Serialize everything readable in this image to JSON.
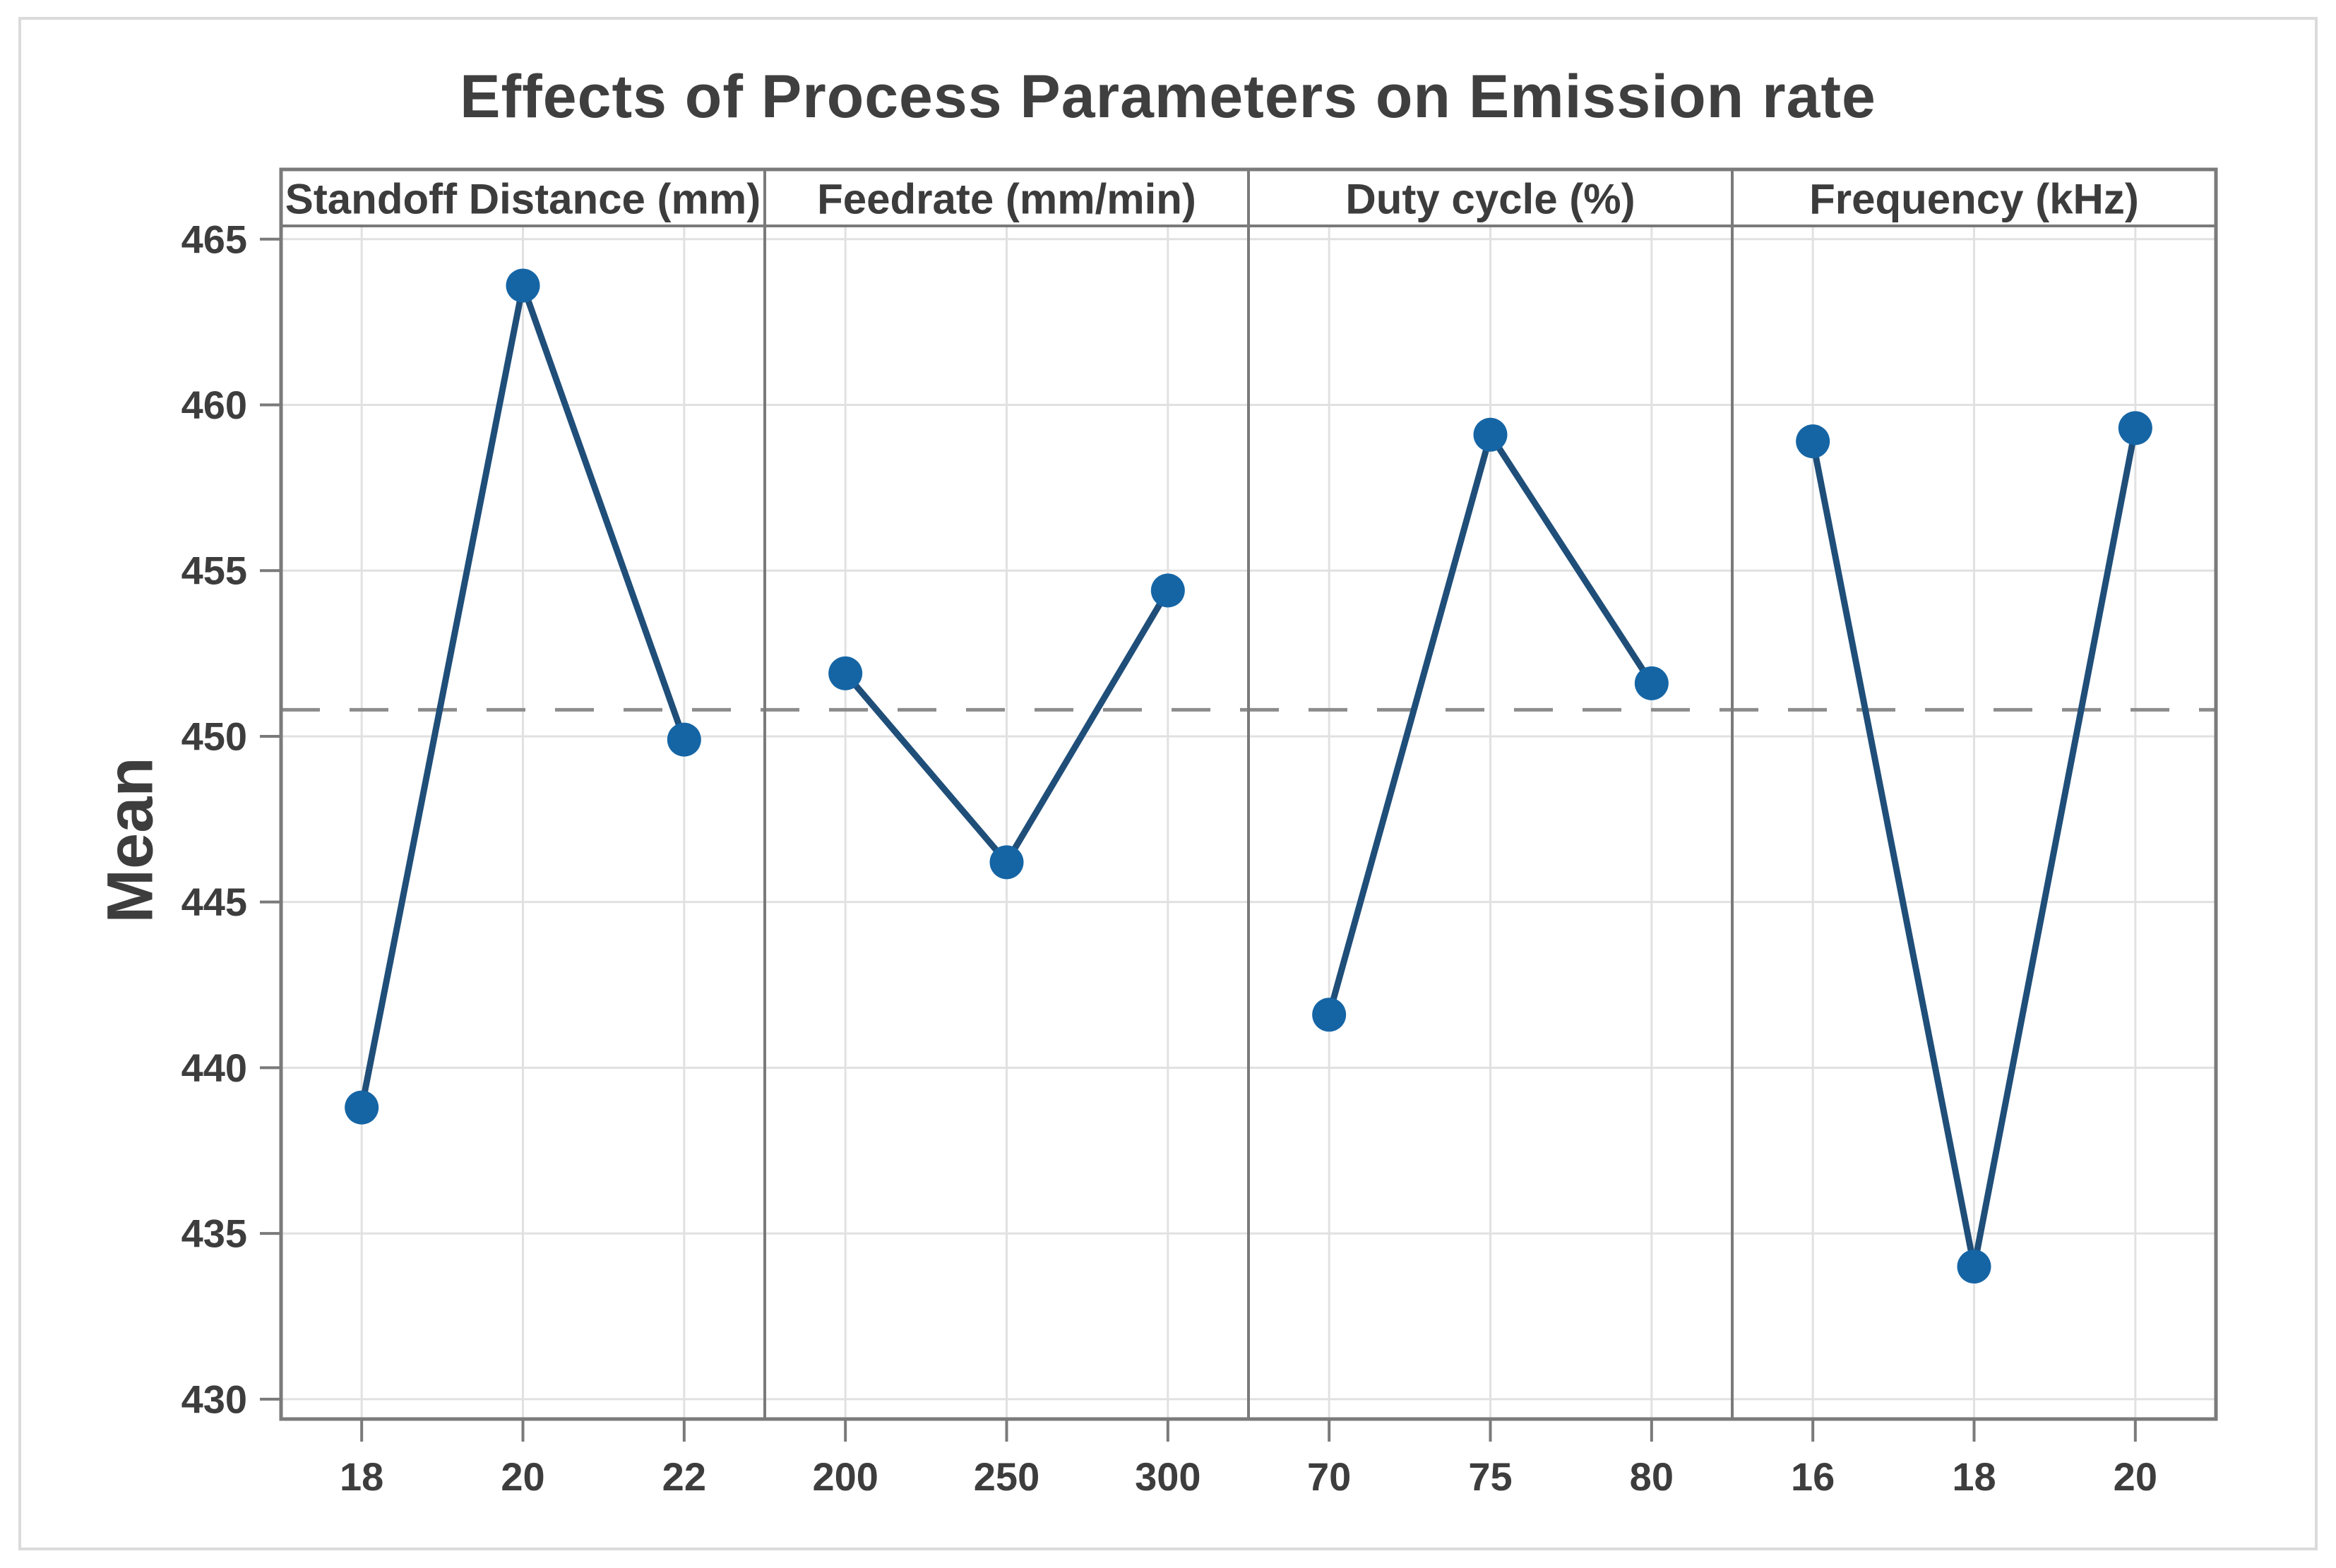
{
  "chart_data": {
    "type": "line",
    "title": "Effects of Process Parameters on Emission rate",
    "ylabel": "Mean",
    "ylim": [
      429.4,
      465.4
    ],
    "yticks": [
      465,
      460,
      455,
      450,
      445,
      440,
      435,
      430
    ],
    "grand_mean": 450.8,
    "grid": true,
    "legend": "none",
    "panels": [
      {
        "header": "Standoff Distance (mm)",
        "categories": [
          "18",
          "20",
          "22"
        ],
        "values": [
          438.8,
          463.6,
          449.9
        ]
      },
      {
        "header": "Feedrate (mm/min)",
        "categories": [
          "200",
          "250",
          "300"
        ],
        "values": [
          451.9,
          446.2,
          454.4
        ]
      },
      {
        "header": "Duty cycle (%)",
        "categories": [
          "70",
          "75",
          "80"
        ],
        "values": [
          441.6,
          459.1,
          451.6
        ]
      },
      {
        "header": "Frequency (kHz)",
        "categories": [
          "16",
          "18",
          "20"
        ],
        "values": [
          458.9,
          434.0,
          459.3
        ]
      }
    ],
    "colors": {
      "marker": "#1565A5",
      "line": "#1F4E79",
      "mean_line": "#8C8C8C",
      "grid": "#E1E1E1",
      "border": "#7A7A7A",
      "text": "#3D3D3D",
      "frame": "#DBDBDB"
    }
  }
}
